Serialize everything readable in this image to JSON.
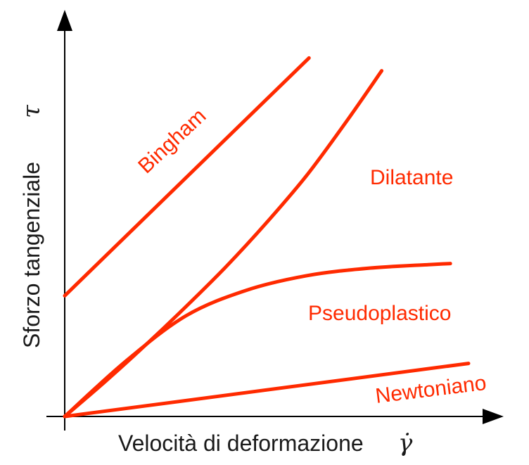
{
  "chart_data": {
    "type": "line",
    "xlabel": "Velocità di deformazione",
    "xlabel_symbol": "γ̇",
    "ylabel": "Sforzo tangenziale",
    "ylabel_symbol": "τ",
    "xlim": [
      0,
      100
    ],
    "ylim": [
      0,
      100
    ],
    "grid": false,
    "ticks": false,
    "series_color": "#ff2a00",
    "axis_color": "#000000",
    "series": [
      {
        "name": "Bingham",
        "x": [
          0,
          60.5
        ],
        "y": [
          33,
          98
        ]
      },
      {
        "name": "Dilatante",
        "x": [
          0,
          10,
          20,
          30,
          40,
          50,
          60,
          70,
          78.5
        ],
        "y": [
          0,
          9.5,
          19.5,
          30,
          41,
          53,
          66,
          81,
          94.5
        ]
      },
      {
        "name": "Pseudoplastico",
        "x": [
          0,
          15,
          30,
          45,
          60,
          75,
          90,
          95.5
        ],
        "y": [
          0,
          15,
          27.5,
          34.5,
          38.5,
          40.5,
          41.5,
          41.8
        ]
      },
      {
        "name": "Newtoniano",
        "x": [
          0,
          100
        ],
        "y": [
          0,
          14.5
        ]
      }
    ]
  }
}
